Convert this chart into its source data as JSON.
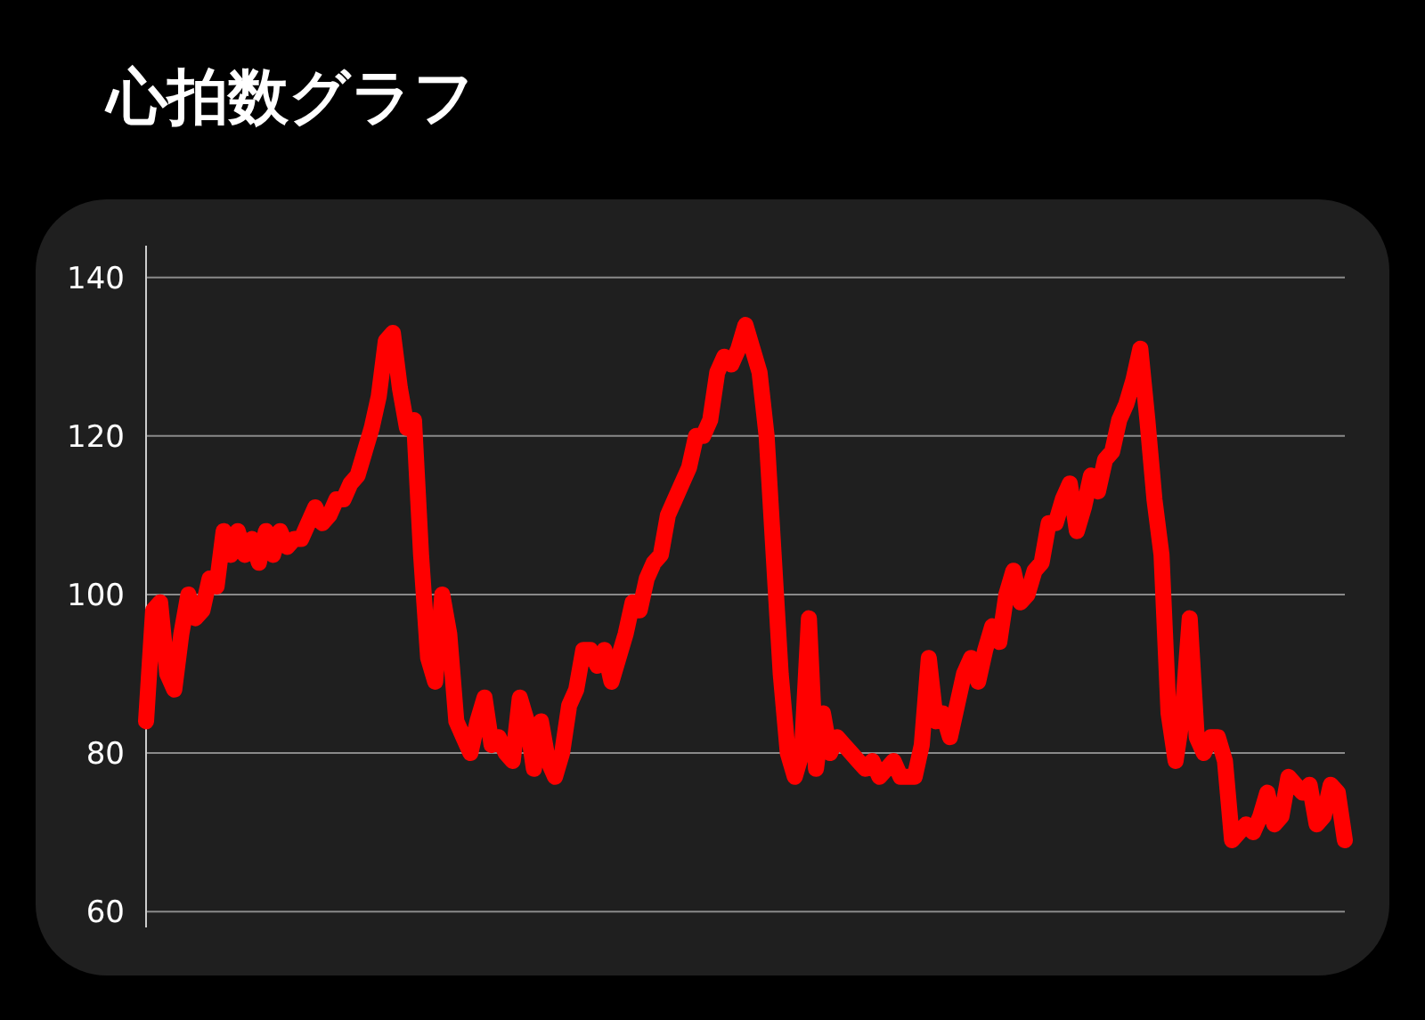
{
  "chart_data": {
    "type": "line",
    "title": "心拍数グラフ",
    "categories": [
      null,
      null,
      null,
      null,
      null,
      null,
      null,
      null,
      null,
      null,
      null,
      null,
      null,
      null,
      null,
      null,
      null,
      null,
      null,
      null,
      null,
      null,
      null,
      null,
      null,
      null,
      null,
      null,
      null,
      null,
      null,
      null,
      null,
      null,
      null,
      null,
      null,
      null,
      null,
      null,
      null,
      null,
      null,
      null,
      null,
      null,
      null,
      null,
      null,
      null,
      null,
      null,
      null,
      null,
      null,
      null,
      null,
      null,
      null,
      null,
      null,
      null,
      null,
      null,
      null,
      null,
      null,
      null,
      null,
      null,
      null,
      null,
      null,
      null,
      null,
      null,
      null,
      null,
      null,
      null,
      null,
      null,
      null,
      null,
      null,
      null,
      null,
      null,
      null,
      null,
      null,
      null,
      null,
      null,
      null,
      null,
      null,
      null,
      null,
      null,
      null,
      null,
      null,
      null,
      null,
      null,
      null,
      null,
      null,
      null,
      null,
      null,
      null,
      null,
      null,
      null,
      null,
      null,
      null,
      null,
      null,
      null,
      null,
      null,
      null,
      null,
      null,
      null,
      null,
      null,
      null,
      null,
      null,
      null,
      null,
      null,
      null,
      null,
      null,
      null,
      null,
      null,
      null,
      null,
      null,
      null,
      null,
      null,
      null,
      null,
      null,
      null,
      null,
      null,
      null,
      null,
      null,
      null,
      null,
      null,
      null,
      null,
      null,
      null,
      null,
      null,
      null,
      null,
      null,
      null,
      null
    ],
    "series": [
      {
        "color": "#ff0000",
        "values": [
          84,
          98,
          99,
          90,
          88,
          95,
          100,
          97,
          98,
          102,
          101,
          108,
          105,
          108,
          105,
          107,
          104,
          108,
          105,
          108,
          106,
          107,
          107,
          109,
          111,
          109,
          110,
          112,
          112,
          114,
          115,
          118,
          121,
          125,
          132,
          133,
          126,
          121,
          122,
          105,
          92,
          89,
          100,
          95,
          84,
          82,
          80,
          84,
          87,
          81,
          82,
          80,
          79,
          87,
          84,
          78,
          84,
          79,
          77,
          80,
          86,
          88,
          93,
          93,
          91,
          93,
          89,
          92,
          95,
          99,
          98,
          102,
          104,
          105,
          110,
          112,
          114,
          116,
          120,
          120,
          122,
          128,
          130,
          129,
          131,
          134,
          131,
          128,
          120,
          105,
          90,
          80,
          77,
          80,
          97,
          78,
          85,
          80,
          82,
          81,
          80,
          79,
          78,
          79,
          77,
          78,
          79,
          77,
          77,
          77,
          81,
          92,
          84,
          85,
          82,
          86,
          90,
          92,
          89,
          93,
          96,
          94,
          100,
          103,
          99,
          100,
          103,
          104,
          109,
          109,
          112,
          114,
          108,
          111,
          115,
          113,
          117,
          118,
          122,
          124,
          127,
          131,
          122,
          112,
          105,
          85,
          79,
          85,
          97,
          82,
          80,
          82,
          82,
          79,
          69,
          70,
          71,
          70,
          72,
          75,
          71,
          72,
          77,
          76,
          75,
          76,
          71,
          72,
          76,
          75,
          69
        ]
      }
    ],
    "ylim": [
      58,
      144
    ],
    "yticks": [
      60,
      80,
      100,
      120,
      140
    ],
    "grid": "y",
    "marker": "none",
    "line_style": "solid"
  }
}
